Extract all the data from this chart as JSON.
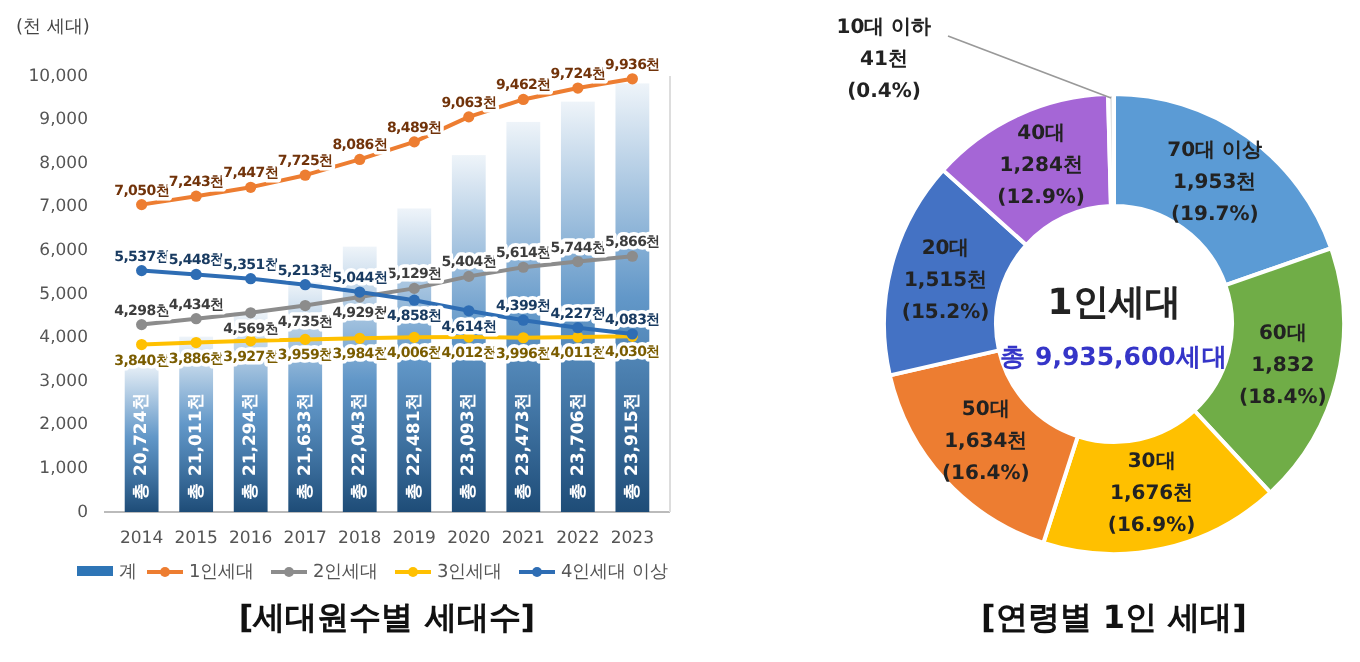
{
  "chart_data": [
    {
      "type": "bar",
      "title": "[세대원수별 세대수]",
      "ylabel": "(천 세대)",
      "categories": [
        "2014",
        "2015",
        "2016",
        "2017",
        "2018",
        "2019",
        "2020",
        "2021",
        "2022",
        "2023"
      ],
      "series": [
        {
          "name": "계",
          "type": "bar",
          "axis": "y2",
          "color": "#2e75b6",
          "values": [
            20724,
            21011,
            21294,
            21633,
            22043,
            22481,
            23093,
            23473,
            23706,
            23915
          ],
          "value_labels": [
            "총 20,724천",
            "총 21,011천",
            "총 21,294천",
            "총 21,633천",
            "총 22,043천",
            "총 22,481천",
            "총 23,093천",
            "총 23,473천",
            "총 23,706천",
            "총 23,915천"
          ]
        },
        {
          "name": "1인세대",
          "type": "line",
          "color": "#ed7d31",
          "values": [
            7050,
            7243,
            7447,
            7725,
            8086,
            8489,
            9063,
            9462,
            9724,
            9936
          ],
          "value_labels": [
            "7,050천",
            "7,243천",
            "7,447천",
            "7,725천",
            "8,086천",
            "8,489천",
            "9,063천",
            "9,462천",
            "9,724천",
            "9,936천"
          ]
        },
        {
          "name": "2인세대",
          "type": "line",
          "color": "#8c8c8c",
          "values": [
            4298,
            4434,
            4569,
            4735,
            4929,
            5129,
            5404,
            5614,
            5744,
            5866
          ],
          "value_labels": [
            "4,298천",
            "4,434천",
            "4,569천",
            "4,735천",
            "4,929천",
            "5,129천",
            "5,404천",
            "5,614천",
            "5,744천",
            "5,866천"
          ]
        },
        {
          "name": "3인세대",
          "type": "line",
          "color": "#ffc000",
          "values": [
            3840,
            3886,
            3927,
            3959,
            3984,
            4006,
            4012,
            3996,
            4011,
            4030
          ],
          "value_labels": [
            "3,840천",
            "3,886천",
            "3,927천",
            "3,959천",
            "3,984천",
            "4,006천",
            "4,012천",
            "3,996천",
            "4,011천",
            "4,030천"
          ]
        },
        {
          "name": "4인세대 이상",
          "type": "line",
          "color": "#2e6db4",
          "values": [
            5537,
            5448,
            5351,
            5213,
            5044,
            4858,
            4614,
            4399,
            4227,
            4083
          ],
          "value_labels": [
            "5,537천",
            "5,448천",
            "5,351천",
            "5,213천",
            "5,044천",
            "4,858천",
            "4,614천",
            "4,399천",
            "4,227천",
            "4,083천"
          ]
        }
      ],
      "ylim": [
        0,
        10000
      ],
      "yticks": [
        0,
        {
          "value": 1000,
          "label": "1,000"
        },
        {
          "value": 2000,
          "label": "2,000"
        },
        {
          "value": 3000,
          "label": "3,000"
        },
        {
          "value": 4000,
          "label": "4,000"
        },
        {
          "value": 5000,
          "label": "5,000"
        },
        {
          "value": 6000,
          "label": "6,000"
        },
        {
          "value": 7000,
          "label": "7,000"
        },
        {
          "value": 8000,
          "label": "8,000"
        },
        {
          "value": 9000,
          "label": "9,000"
        },
        {
          "value": 10000,
          "label": "10,000"
        }
      ],
      "y2lim": [
        19000,
        24000
      ],
      "legend": "bottom",
      "marker": "circle"
    },
    {
      "type": "donut",
      "title": "[연령별 1인 세대]",
      "categories": [
        "70대 이상",
        "60대",
        "30대",
        "50대",
        "20대",
        "40대",
        "10대 이하"
      ],
      "values": [
        1953,
        1832,
        1676,
        1634,
        1515,
        1284,
        41
      ],
      "colors": [
        "#5b9bd5",
        "#70ad47",
        "#ffc000",
        "#ed7d31",
        "#4472c4",
        "#a566d6",
        "#e4e4e4"
      ],
      "value_labels": [
        "1,953천\n(19.7%)",
        "1,832\n(18.4%)",
        "1,676천\n(16.9%)",
        "1,634천\n(16.4%)",
        "1,515천\n(15.2%)",
        "1,284천\n(12.9%)",
        "41천\n(0.4%)"
      ],
      "annotations": [
        "1인세대",
        "총 9,935,600세대"
      ]
    }
  ]
}
